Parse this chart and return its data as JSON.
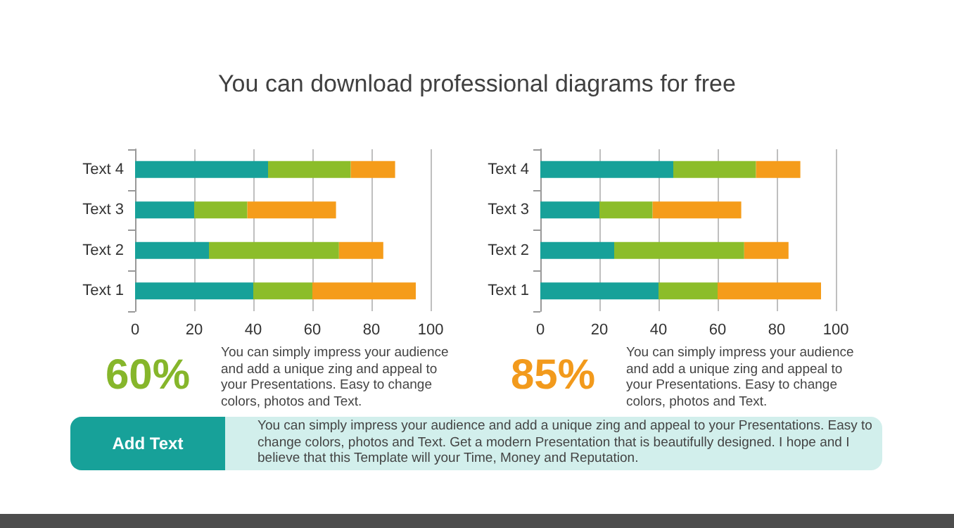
{
  "chart_data": [
    {
      "type": "other",
      "title": "You can download professional diagrams for free"
    },
    {
      "type": "bar",
      "orientation": "horizontal",
      "stacked": true,
      "categories": [
        "Text 4",
        "Text 3",
        "Text 2",
        "Text 1"
      ],
      "series": [
        {
          "color": "#17a199",
          "values": [
            45,
            20,
            25,
            40
          ]
        },
        {
          "color": "#8cbd2a",
          "values": [
            28,
            18,
            44,
            20
          ]
        },
        {
          "color": "#f59c1a",
          "values": [
            15,
            30,
            15,
            35
          ]
        }
      ],
      "xlim": [
        0,
        100
      ],
      "xticks": [
        0,
        20,
        40,
        60,
        80,
        100
      ],
      "grid": "x",
      "annotations": [
        "60%",
        "You can simply impress your audience and add a unique zing and appeal to your Presentations.  Easy to change colors, photos and Text."
      ]
    },
    {
      "type": "bar",
      "orientation": "horizontal",
      "stacked": true,
      "categories": [
        "Text 4",
        "Text 3",
        "Text 2",
        "Text 1"
      ],
      "series": [
        {
          "color": "#17a199",
          "values": [
            45,
            20,
            25,
            40
          ]
        },
        {
          "color": "#8cbd2a",
          "values": [
            28,
            18,
            44,
            20
          ]
        },
        {
          "color": "#f59c1a",
          "values": [
            15,
            30,
            15,
            35
          ]
        }
      ],
      "xlim": [
        0,
        100
      ],
      "xticks": [
        0,
        20,
        40,
        60,
        80,
        100
      ],
      "grid": "x",
      "annotations": [
        "85%",
        "You can simply impress your audience and add a unique zing and appeal to your Presentations.  Easy to change colors, photos and Text."
      ]
    },
    {
      "type": "other",
      "title": "Add Text",
      "annotations": [
        "You can simply impress your audience and add a unique  zing and appeal to your Presentations. Easy to change colors, photos and Text.  Get a modern Presentation that is beautifully designed. I hope and I believe that this Template will your Time, Money and Reputation."
      ]
    }
  ]
}
